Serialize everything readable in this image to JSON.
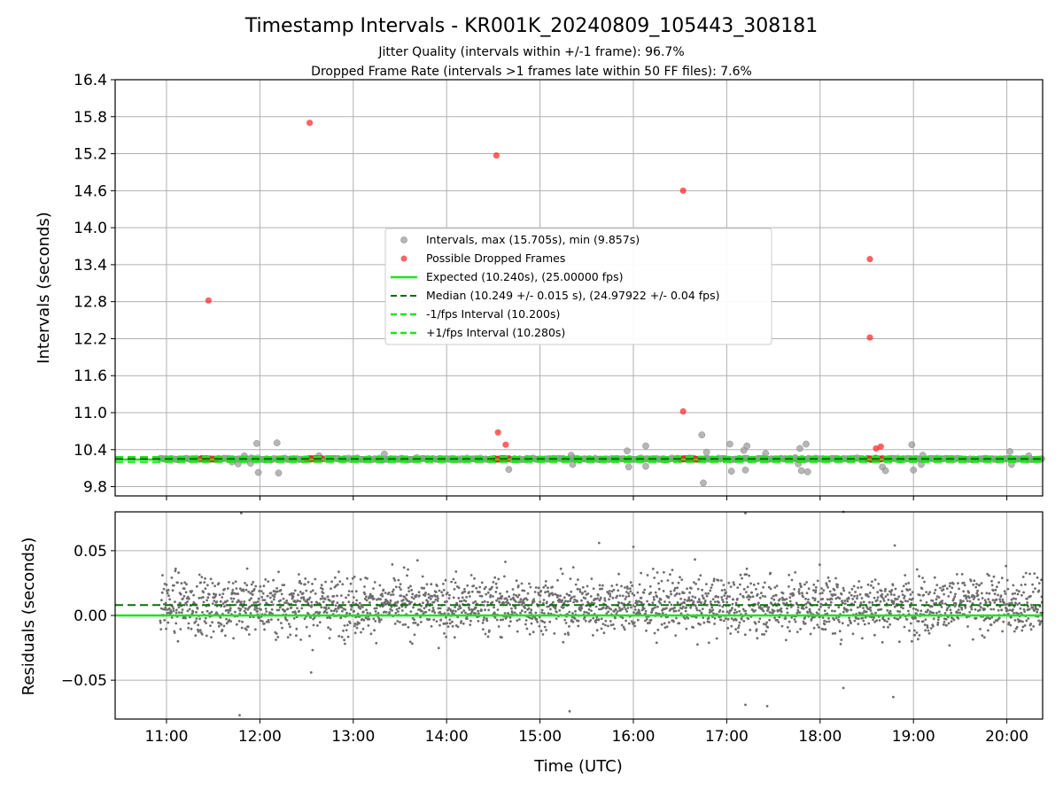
{
  "chart_data": {
    "title": "Timestamp Intervals - KR001K_20240809_105443_308181",
    "subtitle_lines": [
      "Jitter Quality (intervals within +/-1 frame): 96.7%",
      "Dropped Frame Rate (intervals >1 frames late within 50 FF files): 7.6%"
    ],
    "colors": {
      "intervals": "#9e9e9e",
      "dropped": "#ff2020",
      "expected": "#19e619",
      "median": "#0a6e0a",
      "fps_bounds": "#19e619",
      "residuals": "#6e6e6e",
      "grid": "#b0b0b0"
    },
    "x_axis": {
      "label": "Time (UTC)",
      "range": [
        "10:27",
        "20:23"
      ],
      "ticks": [
        "11:00",
        "12:00",
        "13:00",
        "14:00",
        "15:00",
        "16:00",
        "17:00",
        "18:00",
        "19:00",
        "20:00"
      ]
    },
    "intervals_plot": {
      "type": "scatter",
      "ylabel": "Intervals (seconds)",
      "ylim": [
        9.65,
        16.4
      ],
      "yticks": [
        "9.8",
        "10.4",
        "11.0",
        "11.6",
        "12.2",
        "12.8",
        "13.4",
        "14.0",
        "14.6",
        "15.2",
        "15.8",
        "16.4"
      ],
      "grid": true,
      "legend_position": "center",
      "legend": [
        "Intervals, max (15.705s), min (9.857s)",
        "Possible Dropped Frames",
        "Expected (10.240s), (25.00000 fps)",
        "Median (10.249 +/- 0.015 s), (24.97922 +/- 0.04 fps)",
        "-1/fps Interval (10.200s)",
        "+1/fps Interval (10.280s)"
      ],
      "expected": 10.24,
      "median": 10.249,
      "minus_one_frame": 10.2,
      "plus_one_frame": 10.28,
      "series_range": [
        "10:56",
        "20:23"
      ],
      "outlier_intervals": [
        {
          "x": "11:42",
          "y": 10.2
        },
        {
          "x": "11:46",
          "y": 10.17
        },
        {
          "x": "11:50",
          "y": 10.3
        },
        {
          "x": "11:54",
          "y": 10.18
        },
        {
          "x": "11:58",
          "y": 10.5
        },
        {
          "x": "11:59",
          "y": 10.03
        },
        {
          "x": "12:11",
          "y": 10.51
        },
        {
          "x": "12:12",
          "y": 10.02
        },
        {
          "x": "12:38",
          "y": 10.3
        },
        {
          "x": "13:20",
          "y": 10.33
        },
        {
          "x": "14:40",
          "y": 10.08
        },
        {
          "x": "15:20",
          "y": 10.31
        },
        {
          "x": "15:21",
          "y": 10.16
        },
        {
          "x": "15:56",
          "y": 10.38
        },
        {
          "x": "15:57",
          "y": 10.12
        },
        {
          "x": "16:08",
          "y": 10.46
        },
        {
          "x": "16:08",
          "y": 10.13
        },
        {
          "x": "16:44",
          "y": 10.64
        },
        {
          "x": "16:45",
          "y": 9.86
        },
        {
          "x": "16:47",
          "y": 10.36
        },
        {
          "x": "17:02",
          "y": 10.49
        },
        {
          "x": "17:03",
          "y": 10.05
        },
        {
          "x": "17:11",
          "y": 10.39
        },
        {
          "x": "17:12",
          "y": 10.07
        },
        {
          "x": "17:13",
          "y": 10.46
        },
        {
          "x": "17:25",
          "y": 10.34
        },
        {
          "x": "17:44",
          "y": 10.27
        },
        {
          "x": "17:46",
          "y": 10.17
        },
        {
          "x": "17:47",
          "y": 10.42
        },
        {
          "x": "17:48",
          "y": 10.06
        },
        {
          "x": "17:51",
          "y": 10.49
        },
        {
          "x": "17:52",
          "y": 10.04
        },
        {
          "x": "18:40",
          "y": 10.12
        },
        {
          "x": "18:42",
          "y": 10.06
        },
        {
          "x": "18:59",
          "y": 10.48
        },
        {
          "x": "19:00",
          "y": 10.07
        },
        {
          "x": "19:05",
          "y": 10.16
        },
        {
          "x": "19:06",
          "y": 10.31
        },
        {
          "x": "20:02",
          "y": 10.37
        },
        {
          "x": "20:03",
          "y": 10.16
        },
        {
          "x": "20:14",
          "y": 10.3
        }
      ],
      "dropped_frames": [
        {
          "x": "11:27",
          "y": 12.82
        },
        {
          "x": "12:32",
          "y": 15.7
        },
        {
          "x": "14:32",
          "y": 15.17
        },
        {
          "x": "14:33",
          "y": 10.68
        },
        {
          "x": "14:38",
          "y": 10.48
        },
        {
          "x": "16:32",
          "y": 14.6
        },
        {
          "x": "16:32",
          "y": 11.02
        },
        {
          "x": "18:32",
          "y": 13.49
        },
        {
          "x": "18:32",
          "y": 12.22
        },
        {
          "x": "18:36",
          "y": 10.42
        },
        {
          "x": "18:39",
          "y": 10.45
        }
      ],
      "dropped_clusters": [
        {
          "start": "11:22",
          "end": "11:32",
          "y": 10.25
        },
        {
          "start": "12:30",
          "end": "12:40",
          "y": 10.25
        },
        {
          "start": "14:30",
          "end": "14:40",
          "y": 10.25
        },
        {
          "start": "16:30",
          "end": "16:42",
          "y": 10.25
        },
        {
          "start": "18:30",
          "end": "18:40",
          "y": 10.25
        }
      ]
    },
    "residuals_plot": {
      "type": "scatter",
      "ylabel": "Residuals (seconds)",
      "ylim": [
        -0.08,
        0.08
      ],
      "yticks": [
        "−0.05",
        "0.00",
        "0.05"
      ],
      "ytick_values": [
        -0.05,
        0.0,
        0.05
      ],
      "grid": true,
      "zero_line": 0.0,
      "median_line": 0.008,
      "band": {
        "center": 0.008,
        "spread": 0.05
      },
      "series_range": [
        "10:56",
        "20:23"
      ],
      "outliers": [
        {
          "x": "11:47",
          "y": -0.077
        },
        {
          "x": "11:48",
          "y": 0.079
        },
        {
          "x": "12:33",
          "y": -0.044
        },
        {
          "x": "15:19",
          "y": -0.074
        },
        {
          "x": "17:12",
          "y": -0.069
        },
        {
          "x": "17:12",
          "y": 0.079
        },
        {
          "x": "17:26",
          "y": -0.07
        },
        {
          "x": "18:15",
          "y": 0.08
        },
        {
          "x": "18:15",
          "y": -0.056
        },
        {
          "x": "18:47",
          "y": -0.063
        },
        {
          "x": "18:48",
          "y": 0.054
        },
        {
          "x": "15:38",
          "y": 0.056
        },
        {
          "x": "16:00",
          "y": 0.053
        }
      ]
    }
  }
}
